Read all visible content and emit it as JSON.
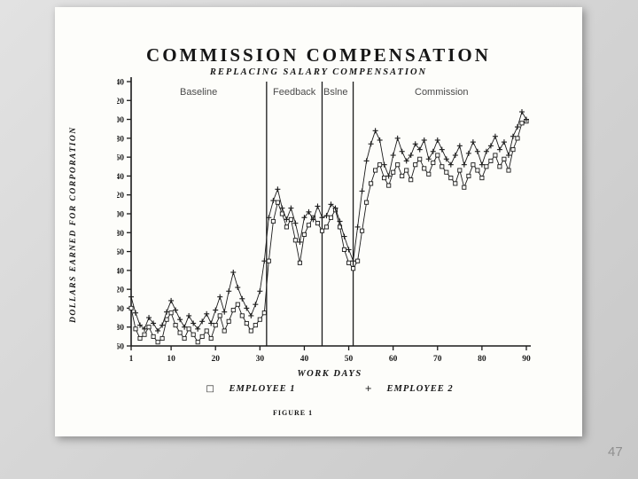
{
  "page_number": "47",
  "figure_caption": "FIGURE 1",
  "chart_data": {
    "type": "line",
    "title": "COMMISSION COMPENSATION",
    "subtitle": "REPLACING SALARY COMPENSATION",
    "xlabel": "WORK DAYS",
    "ylabel": "DOLLARS EARNED FOR CORPORATION",
    "xlim": [
      1,
      90
    ],
    "ylim": [
      60,
      340
    ],
    "x_ticks": [
      1,
      10,
      20,
      30,
      40,
      50,
      60,
      70,
      80,
      90
    ],
    "y_ticks": [
      60,
      80,
      100,
      120,
      140,
      160,
      180,
      200,
      220,
      240,
      260,
      280,
      300,
      320,
      340
    ],
    "grid": false,
    "legend_position": "bottom",
    "ink_color": "#1b1b1b",
    "phase_lines_at_day": [
      31.5,
      44,
      51
    ],
    "phase_labels": [
      {
        "label": "Baseline"
      },
      {
        "label": "Feedback"
      },
      {
        "label": "Bslne"
      },
      {
        "label": "Commission"
      }
    ],
    "legend": [
      {
        "marker": "□",
        "label": "EMPLOYEE 1"
      },
      {
        "marker": "+",
        "label": "EMPLOYEE 2"
      }
    ],
    "x": [
      1,
      2,
      3,
      4,
      5,
      6,
      7,
      8,
      9,
      10,
      11,
      12,
      13,
      14,
      15,
      16,
      17,
      18,
      19,
      20,
      21,
      22,
      23,
      24,
      25,
      26,
      27,
      28,
      29,
      30,
      31,
      32,
      33,
      34,
      35,
      36,
      37,
      38,
      39,
      40,
      41,
      42,
      43,
      44,
      45,
      46,
      47,
      48,
      49,
      50,
      51,
      52,
      53,
      54,
      55,
      56,
      57,
      58,
      59,
      60,
      61,
      62,
      63,
      64,
      65,
      66,
      67,
      68,
      69,
      70,
      71,
      72,
      73,
      74,
      75,
      76,
      77,
      78,
      79,
      80,
      81,
      82,
      83,
      84,
      85,
      86,
      87,
      88,
      89,
      90
    ],
    "series": [
      {
        "name": "EMPLOYEE 1",
        "marker": "square",
        "values": [
          100,
          78,
          68,
          72,
          80,
          70,
          64,
          68,
          88,
          95,
          82,
          74,
          68,
          78,
          72,
          64,
          70,
          76,
          68,
          82,
          92,
          76,
          86,
          98,
          104,
          92,
          84,
          76,
          82,
          88,
          95,
          150,
          192,
          212,
          200,
          186,
          194,
          172,
          148,
          178,
          188,
          196,
          190,
          182,
          186,
          196,
          204,
          186,
          162,
          148,
          142,
          150,
          182,
          212,
          232,
          246,
          252,
          238,
          230,
          244,
          252,
          240,
          246,
          236,
          252,
          258,
          248,
          242,
          254,
          262,
          250,
          244,
          238,
          232,
          246,
          228,
          240,
          252,
          246,
          238,
          250,
          256,
          262,
          250,
          258,
          246,
          268,
          280,
          296,
          298
        ]
      },
      {
        "name": "EMPLOYEE 2",
        "marker": "plus",
        "values": [
          112,
          95,
          82,
          78,
          90,
          84,
          76,
          82,
          96,
          108,
          98,
          88,
          80,
          92,
          84,
          78,
          86,
          94,
          84,
          98,
          112,
          96,
          118,
          138,
          122,
          110,
          100,
          92,
          104,
          118,
          150,
          196,
          214,
          226,
          206,
          194,
          206,
          190,
          170,
          196,
          202,
          194,
          208,
          196,
          198,
          210,
          206,
          192,
          176,
          162,
          150,
          186,
          224,
          256,
          274,
          288,
          278,
          252,
          240,
          262,
          280,
          266,
          256,
          262,
          274,
          268,
          278,
          258,
          266,
          278,
          268,
          258,
          252,
          262,
          272,
          252,
          264,
          276,
          266,
          252,
          266,
          272,
          282,
          268,
          276,
          262,
          282,
          292,
          308,
          300
        ]
      }
    ]
  }
}
